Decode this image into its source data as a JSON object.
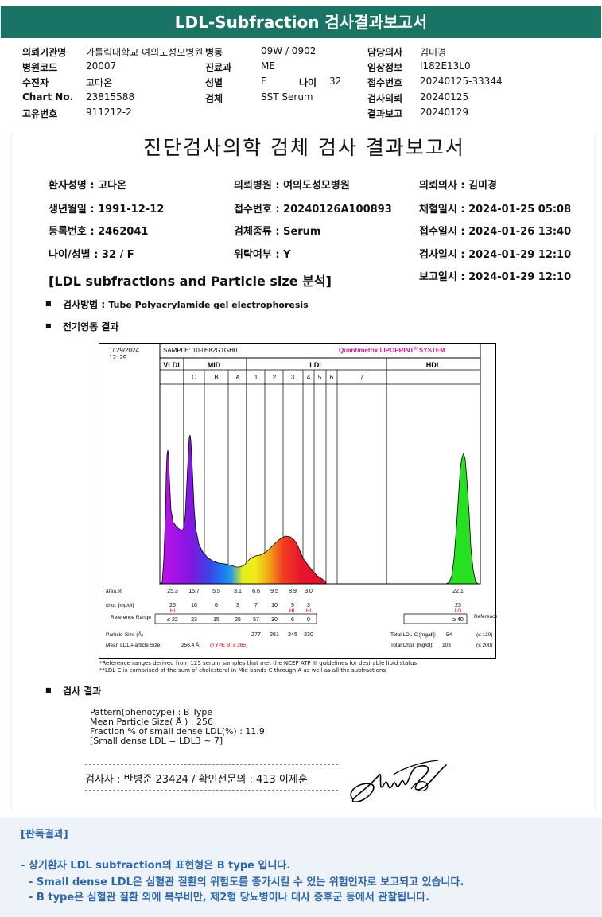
{
  "header": {
    "title": "LDL-Subfraction 검사결과보고서"
  },
  "info": {
    "hospital_label": "의뢰기관명",
    "hospital": "가톨릭대학교 여의도성모병원",
    "ward_label": "병동",
    "ward": "09W / 0902",
    "doctor_label": "담당의사",
    "doctor": "김미경",
    "code_label": "병원코드",
    "code": "20007",
    "dept_label": "진료과",
    "dept": "ME",
    "clinical_label": "임상정보",
    "clinical": "I182E13L0",
    "patient_label": "수진자",
    "patient": "고다온",
    "sex_label": "성별",
    "sex": "F",
    "age_label": "나이",
    "age": "32",
    "accession_label": "접수번호",
    "accession": "20240125-33344",
    "chart_label": "Chart No.",
    "chart": "23815588",
    "specimen_label": "검체",
    "specimen": "SST Serum",
    "request_label": "검사의뢰",
    "request": "20240125",
    "id_label": "고유번호",
    "id": "911212-2",
    "report_label": "결과보고",
    "report": "20240129"
  },
  "report": {
    "title": "진단검사의학 검체 검사 결과보고서",
    "patient_name": "환자성명 : 고다온",
    "hospital": "의뢰병원 : 여의도성모병원",
    "doctor": "의뢰의사 : 김미경",
    "birth": "생년월일 : 1991-12-12",
    "accession": "접수번호 : 20240126A100893",
    "collected": "채혈일시 : 2024-01-25 05:08",
    "reg_no": "등록번호 : 2462041",
    "specimen": "검체종류 : Serum",
    "received": "접수일시 : 2024-01-26 13:40",
    "age_sex": "나이/성별 : 32 / F",
    "outsourced": "위탁여부 : Y",
    "tested": "검사일시 : 2024-01-29 12:10",
    "section_title": "[LDL subfractions and Particle size 분석]",
    "reported": "보고일시 : 2024-01-29 12:10",
    "method_label": "검사방법 :",
    "method": "Tube Polyacrylamide gel electrophoresis",
    "electro_label": "전기영동 결과",
    "result_label": "검사 결과",
    "result_lines": [
      "Pattern(phenotype) : B Type",
      "Mean Particle Size( Å ) : 256",
      "Fraction % of small dense LDL(%) : 11.9",
      "[Small dense LDL = LDL3 ~ 7]"
    ],
    "tester": "검사자 : 반병준  23424  /  확인전문의 : 413  이제훈",
    "footnotes": [
      "*Reference ranges derived from 125 serum samples that met the NCEP ATP III guidelines for desirable lipid status",
      "**LDL-C is comprised of the sum of cholesterol in Mid bands C through A as well as all the subfractions"
    ]
  },
  "chart_data": {
    "type": "area",
    "date": "1/ 29/2024",
    "time": "12: 29",
    "sample": "SAMPLE:  10-0582G1GH0",
    "brand": "Quantimetrix LIPOPRINT",
    "brand_mark": "®",
    "brand_suffix": "SYSTEM",
    "groups": [
      "VLDL",
      "MID",
      "LDL",
      "HDL"
    ],
    "bands": [
      "C",
      "B",
      "A",
      "1",
      "2",
      "3",
      "4",
      "5",
      "6",
      "7"
    ],
    "area_label": "area.%",
    "area": [
      "25.3",
      "15.7",
      "5.5",
      "3.1",
      "6.6",
      "9.5",
      "8.9",
      "3.0",
      "22.1"
    ],
    "chol_label": "chol. [mg/dl]",
    "chol": [
      "26",
      "16",
      "6",
      "3",
      "7",
      "10",
      "9",
      "3",
      "23"
    ],
    "flags": [
      "HI",
      "HI",
      "HI",
      "LO"
    ],
    "ref_label": "Reference Range",
    "ref_ranges": [
      "≤ 22",
      "23",
      "15",
      "25",
      "57",
      "30",
      "6",
      "0",
      "≥ 40"
    ],
    "particle_label": "Particle-Size (Å)",
    "particle_sizes": [
      "277",
      "261",
      "245",
      "230"
    ],
    "mean_label": "Mean LDL-Particle Size:",
    "mean_value": "256.4 Å",
    "mean_type": "(TYPE B; ≤ 265)",
    "total_ldl_label": "Total LDL-C [mg/dl]:",
    "total_ldl": "54",
    "total_ldl_ref": "(≤ 130)",
    "total_chol_label": "Total Chol. [mg/dl]:",
    "total_chol": "103",
    "total_chol_ref": "(≤ 200)"
  },
  "interpretation": {
    "title": "[판독결과]",
    "lines": [
      "- 상기환자 LDL subfraction의 표현형은 B type 입니다.",
      "-  Small dense LDL은 심혈관 질환의 위험도를 증가시킬 수 있는 위험인자로 보고되고 있습니다.",
      "-  B type은 심혈관 질환 외에 복부비만, 제2형 당뇨병이나 대사 증후군 등에서 관찰됩니다."
    ]
  }
}
